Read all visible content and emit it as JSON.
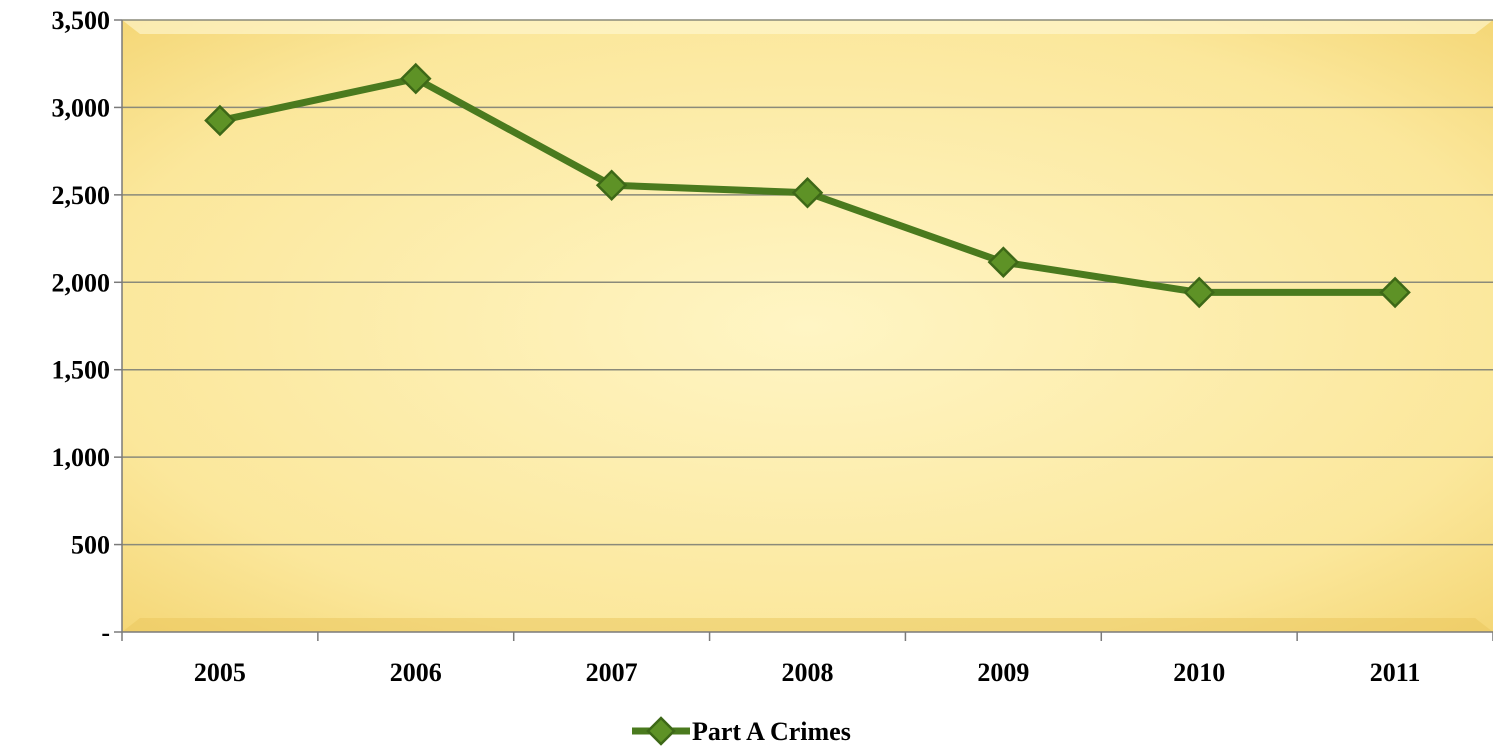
{
  "chart_data": {
    "type": "line",
    "title": "",
    "xlabel": "",
    "ylabel": "",
    "categories": [
      "2005",
      "2006",
      "2007",
      "2008",
      "2009",
      "2010",
      "2011"
    ],
    "series": [
      {
        "name": "Part A Crimes",
        "values": [
          2925,
          3165,
          2555,
          2512,
          2115,
          1942,
          1942
        ],
        "color": "#4a7a1e",
        "marker": "diamond"
      }
    ],
    "ylim": [
      0,
      3500
    ],
    "yticks": [
      0,
      500,
      1000,
      1500,
      2000,
      2500,
      3000,
      3500
    ],
    "ytick_labels": [
      "-",
      "500",
      "1,000",
      "1,500",
      "2,000",
      "2,500",
      "3,000",
      "3,500"
    ],
    "grid": true,
    "legend_position": "bottom",
    "colors": {
      "plot_fill_center": "#fdf0b0",
      "plot_fill_edge": "#f6d778",
      "gridline": "#8a8a7a",
      "line": "#4a7a1e",
      "marker_fill": "#5e9226",
      "marker_stroke": "#3d6817"
    }
  }
}
